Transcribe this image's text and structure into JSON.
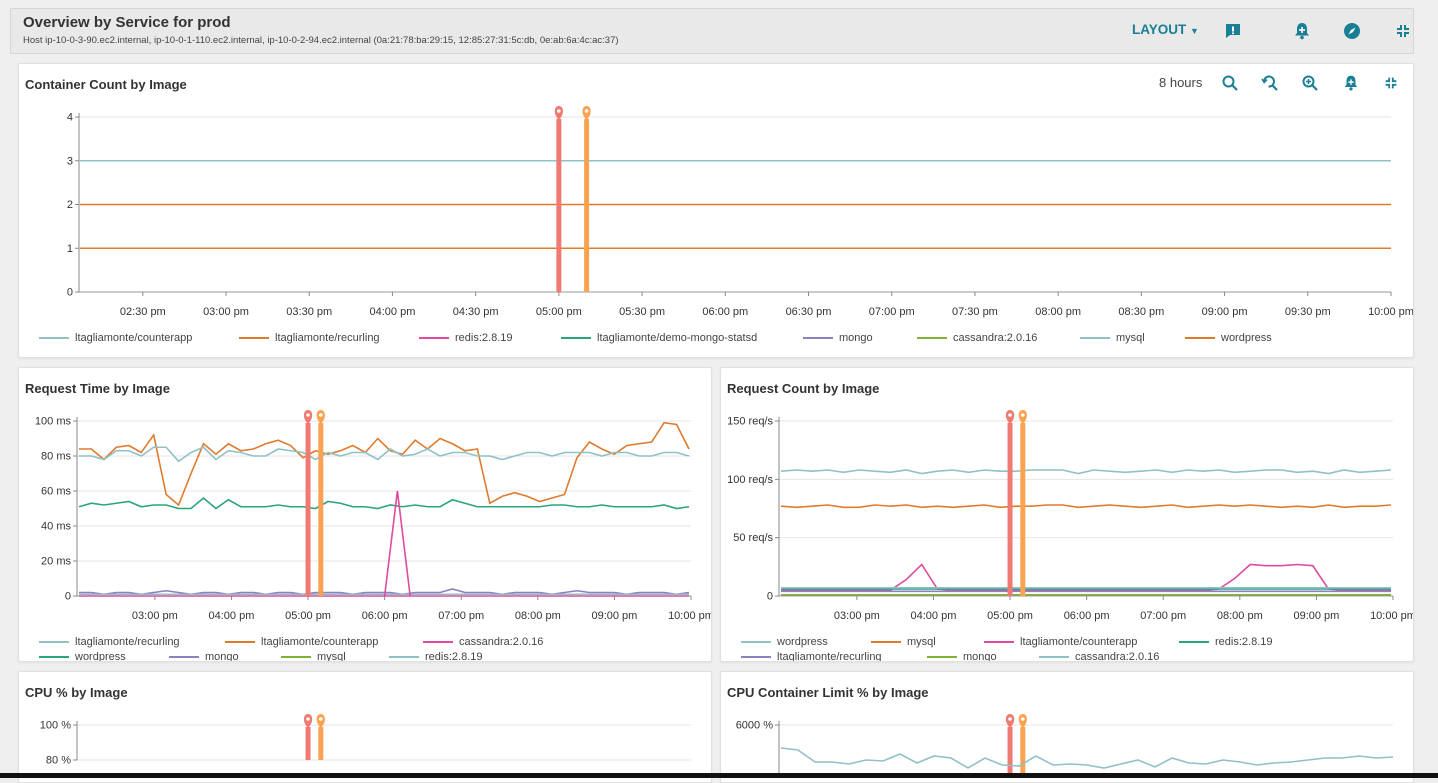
{
  "header": {
    "title": "Overview by Service for prod",
    "subtitle": "Host ip-10-0-3-90.ec2.internal, ip-10-0-1-110.ec2.internal, ip-10-0-2-94.ec2.internal (0a:21:78:ba:29:15, 12:85:27:31:5c:db, 0e:ab:6a:4c:ac:37)",
    "layout_label": "LAYOUT",
    "icons": [
      "event-icon",
      "add-alert-icon",
      "explore-icon",
      "collapse-icon"
    ]
  },
  "colors": {
    "accent": "#1a7f94",
    "teal_light": "#8fc1c6",
    "orange": "#e07a2e",
    "pink": "#e04a9f",
    "green": "#2aa57a",
    "purple": "#8b80c0",
    "lime": "#7fb135",
    "event_red": "#f07a72",
    "event_orange": "#f9a252"
  },
  "panels": {
    "container_count": {
      "title": "Container Count by Image",
      "time_range": "8 hours",
      "icons": [
        "zoom-out-icon",
        "reset-zoom-icon",
        "zoom-in-icon",
        "add-alert-icon",
        "collapse-icon"
      ],
      "legend": [
        "ltagliamonte/counterapp",
        "ltagliamonte/recurling",
        "redis:2.8.19",
        "ltagliamonte/demo-mongo-statsd",
        "mongo",
        "cassandra:2.0.16",
        "mysql",
        "wordpress"
      ]
    },
    "request_time": {
      "title": "Request Time by Image",
      "legend": [
        "ltagliamonte/recurling",
        "ltagliamonte/counterapp",
        "cassandra:2.0.16",
        "wordpress",
        "mongo",
        "mysql",
        "redis:2.8.19"
      ]
    },
    "request_count": {
      "title": "Request Count by Image",
      "legend": [
        "wordpress",
        "mysql",
        "ltagliamonte/counterapp",
        "redis:2.8.19",
        "ltagliamonte/recurling",
        "mongo",
        "cassandra:2.0.16"
      ]
    },
    "cpu": {
      "title": "CPU % by Image"
    },
    "cpu_limit": {
      "title": "CPU Container Limit % by Image"
    }
  },
  "chart_data": [
    {
      "type": "line",
      "title": "Container Count by Image",
      "x_ticks": [
        "02:30 pm",
        "03:00 pm",
        "03:30 pm",
        "04:00 pm",
        "04:30 pm",
        "05:00 pm",
        "05:30 pm",
        "06:00 pm",
        "06:30 pm",
        "07:00 pm",
        "07:30 pm",
        "08:00 pm",
        "08:30 pm",
        "09:00 pm",
        "09:30 pm",
        "10:00 pm"
      ],
      "y_ticks": [
        "0",
        "1",
        "2",
        "3",
        "4"
      ],
      "ylim": [
        0,
        4
      ],
      "events": [
        {
          "time": "05:00 pm",
          "color": "#f07a72"
        },
        {
          "time": "05:10 pm",
          "color": "#f9a252"
        }
      ],
      "series": [
        {
          "name": "ltagliamonte/counterapp",
          "color": "#8fc1c6",
          "value": 3
        },
        {
          "name": "ltagliamonte/recurling",
          "color": "#e07a2e",
          "value": 2
        },
        {
          "name": "redis:2.8.19",
          "color": "#e04a9f",
          "value": 1
        },
        {
          "name": "ltagliamonte/demo-mongo-statsd",
          "color": "#2aa57a",
          "value": 1
        },
        {
          "name": "mongo",
          "color": "#8b80c0",
          "value": 1
        },
        {
          "name": "cassandra:2.0.16",
          "color": "#7fb135",
          "value": 1
        },
        {
          "name": "mysql",
          "color": "#8fc1c6",
          "value": 1
        },
        {
          "name": "wordpress",
          "color": "#e07a2e",
          "value": 1
        }
      ]
    },
    {
      "type": "line",
      "title": "Request Time by Image",
      "x_ticks": [
        "03:00 pm",
        "04:00 pm",
        "05:00 pm",
        "06:00 pm",
        "07:00 pm",
        "08:00 pm",
        "09:00 pm",
        "10:00 pm"
      ],
      "y_ticks": [
        "0",
        "20 ms",
        "40 ms",
        "60 ms",
        "80 ms",
        "100 ms"
      ],
      "ylim": [
        0,
        100
      ],
      "events": [
        {
          "time": "05:00 pm",
          "color": "#f07a72"
        },
        {
          "time": "05:10 pm",
          "color": "#f9a252"
        }
      ],
      "series": [
        {
          "name": "ltagliamonte/counterapp",
          "color": "#e07a2e",
          "values": [
            84,
            84,
            78,
            85,
            86,
            82,
            92,
            58,
            52,
            70,
            87,
            81,
            87,
            83,
            84,
            87,
            89,
            86,
            79,
            83,
            81,
            83,
            86,
            82,
            90,
            83,
            81,
            89,
            84,
            90,
            87,
            83,
            84,
            53,
            57,
            59,
            57,
            54,
            56,
            58,
            79,
            88,
            84,
            81,
            86,
            87,
            88,
            99,
            98,
            84
          ]
        },
        {
          "name": "ltagliamonte/recurling",
          "color": "#8fc1c6",
          "values": [
            80,
            80,
            78,
            83,
            83,
            80,
            85,
            85,
            77,
            82,
            85,
            78,
            83,
            82,
            80,
            80,
            84,
            83,
            82,
            78,
            82,
            80,
            82,
            82,
            78,
            84,
            80,
            81,
            84,
            80,
            82,
            82,
            80,
            80,
            78,
            80,
            82,
            82,
            80,
            82,
            82,
            82,
            80,
            82,
            82,
            80,
            80,
            82,
            82,
            80
          ]
        },
        {
          "name": "wordpress",
          "color": "#2aa57a",
          "values": [
            51,
            53,
            52,
            53,
            54,
            51,
            52,
            52,
            50,
            50,
            56,
            50,
            55,
            51,
            51,
            51,
            52,
            51,
            51,
            50,
            54,
            53,
            51,
            51,
            50,
            52,
            51,
            52,
            51,
            51,
            55,
            53,
            51,
            51,
            51,
            51,
            51,
            51,
            52,
            52,
            51,
            51,
            52,
            51,
            51,
            51,
            51,
            52,
            50,
            51
          ]
        },
        {
          "name": "cassandra:2.0.16",
          "color": "#e04a9f",
          "values": [
            0,
            0,
            0,
            0,
            0,
            0,
            0,
            0,
            0,
            0,
            0,
            0,
            0,
            0,
            0,
            0,
            0,
            0,
            0,
            0,
            0,
            0,
            0,
            0,
            0,
            0,
            0,
            0,
            0,
            0,
            0,
            0,
            0,
            0,
            0,
            0,
            0,
            0,
            0,
            0,
            0,
            0,
            0,
            0,
            0,
            0,
            0,
            0,
            0,
            0
          ]
        },
        {
          "name": "mongo",
          "color": "#8b80c0",
          "values": [
            2,
            2,
            1,
            2,
            2,
            1,
            2,
            3,
            2,
            1,
            2,
            2,
            1,
            2,
            2,
            1,
            2,
            2,
            1,
            2,
            2,
            2,
            1,
            2,
            2,
            2,
            1,
            2,
            2,
            2,
            4,
            2,
            2,
            2,
            1,
            2,
            2,
            2,
            1,
            2,
            3,
            2,
            2,
            2,
            1,
            2,
            2,
            2,
            1,
            2
          ]
        },
        {
          "name": "mysql",
          "color": "#7fb135",
          "values": [
            1,
            1,
            1,
            1,
            1,
            1,
            1,
            1,
            1,
            1,
            1,
            1,
            1,
            1,
            1,
            1,
            1,
            1,
            1,
            1,
            1,
            1,
            1,
            1,
            1,
            1,
            1,
            1,
            1,
            1,
            1,
            1,
            1,
            1,
            1,
            1,
            1,
            1,
            1,
            1,
            1,
            1,
            1,
            1,
            1,
            1,
            1,
            1,
            1,
            1
          ]
        },
        {
          "name": "redis:2.8.19",
          "color": "#8fc1c6",
          "values": [
            1,
            1,
            1,
            1,
            1,
            1,
            1,
            1,
            1,
            1,
            1,
            1,
            1,
            1,
            1,
            1,
            1,
            1,
            1,
            1,
            1,
            1,
            1,
            1,
            1,
            1,
            1,
            1,
            1,
            1,
            1,
            1,
            1,
            1,
            1,
            1,
            1,
            1,
            1,
            1,
            1,
            1,
            1,
            1,
            1,
            1,
            1,
            1,
            1,
            1
          ]
        }
      ],
      "spikes": [
        {
          "series": "cassandra:2.0.16",
          "from": "06:00 pm",
          "peak": 60,
          "to": "06:20 pm"
        }
      ]
    },
    {
      "type": "line",
      "title": "Request Count by Image",
      "x_ticks": [
        "03:00 pm",
        "04:00 pm",
        "05:00 pm",
        "06:00 pm",
        "07:00 pm",
        "08:00 pm",
        "09:00 pm",
        "10:00 pm"
      ],
      "y_ticks": [
        "0",
        "50 req/s",
        "100 req/s",
        "150 req/s"
      ],
      "ylim": [
        0,
        150
      ],
      "events": [
        {
          "time": "05:00 pm",
          "color": "#f07a72"
        },
        {
          "time": "05:10 pm",
          "color": "#f9a252"
        }
      ],
      "series": [
        {
          "name": "wordpress",
          "color": "#8fc1c6",
          "values": [
            107,
            108,
            107,
            108,
            106,
            108,
            107,
            106,
            108,
            105,
            107,
            108,
            106,
            108,
            107,
            107,
            108,
            108,
            108,
            105,
            108,
            107,
            106,
            107,
            108,
            106,
            108,
            107,
            108,
            106,
            107,
            108,
            108,
            106,
            107,
            105,
            108,
            106,
            107,
            108
          ]
        },
        {
          "name": "mysql",
          "color": "#e07a2e",
          "values": [
            77,
            76,
            77,
            78,
            76,
            76,
            78,
            77,
            78,
            76,
            77,
            76,
            77,
            78,
            76,
            77,
            77,
            78,
            78,
            76,
            77,
            78,
            77,
            76,
            77,
            78,
            76,
            77,
            78,
            77,
            78,
            77,
            76,
            77,
            76,
            78,
            76,
            77,
            77,
            78
          ]
        },
        {
          "name": "ltagliamonte/counterapp",
          "color": "#e04a9f",
          "values": [
            5,
            5,
            5,
            5,
            5,
            5,
            5,
            5,
            14,
            27,
            6,
            5,
            5,
            5,
            5,
            5,
            5,
            5,
            5,
            5,
            5,
            5,
            5,
            5,
            5,
            5,
            5,
            5,
            6,
            15,
            27,
            26,
            26,
            27,
            26,
            6,
            5,
            5,
            5,
            5
          ]
        },
        {
          "name": "redis:2.8.19",
          "color": "#2aa57a",
          "values": [
            6,
            6,
            6,
            6,
            6,
            6,
            6,
            6,
            6,
            6,
            6,
            6,
            6,
            6,
            6,
            6,
            6,
            6,
            6,
            6,
            6,
            6,
            6,
            6,
            6,
            6,
            6,
            6,
            6,
            6,
            6,
            6,
            6,
            6,
            6,
            6,
            6,
            6,
            6,
            6
          ]
        },
        {
          "name": "ltagliamonte/recurling",
          "color": "#8b80c0",
          "values": [
            4,
            4,
            4,
            4,
            4,
            4,
            4,
            4,
            4,
            4,
            4,
            4,
            4,
            4,
            4,
            4,
            4,
            4,
            4,
            4,
            4,
            4,
            4,
            4,
            4,
            4,
            4,
            4,
            4,
            4,
            4,
            4,
            4,
            4,
            4,
            4,
            4,
            4,
            4,
            4
          ]
        },
        {
          "name": "mongo",
          "color": "#7fb135",
          "values": [
            1,
            1,
            1,
            1,
            1,
            1,
            1,
            1,
            1,
            1,
            1,
            1,
            1,
            1,
            1,
            1,
            1,
            1,
            1,
            1,
            1,
            1,
            1,
            1,
            1,
            1,
            1,
            1,
            1,
            1,
            1,
            1,
            1,
            1,
            1,
            1,
            1,
            1,
            1,
            1
          ]
        },
        {
          "name": "cassandra:2.0.16",
          "color": "#8fc1c6",
          "values": [
            7,
            7,
            7,
            7,
            7,
            7,
            7,
            7,
            7,
            7,
            7,
            7,
            7,
            7,
            7,
            7,
            7,
            7,
            7,
            7,
            7,
            7,
            7,
            7,
            7,
            7,
            7,
            7,
            7,
            7,
            7,
            7,
            7,
            7,
            7,
            7,
            7,
            7,
            7,
            7
          ]
        }
      ]
    },
    {
      "type": "line",
      "title": "CPU % by Image",
      "y_ticks": [
        "80 %",
        "100 %"
      ],
      "events": [
        {
          "time": "05:00 pm",
          "color": "#f07a72"
        },
        {
          "time": "05:10 pm",
          "color": "#f9a252"
        }
      ]
    },
    {
      "type": "line",
      "title": "CPU Container Limit % by Image",
      "y_ticks": [
        "6000 %"
      ],
      "events": [
        {
          "time": "05:00 pm",
          "color": "#f07a72"
        },
        {
          "time": "05:10 pm",
          "color": "#f9a252"
        }
      ]
    }
  ]
}
